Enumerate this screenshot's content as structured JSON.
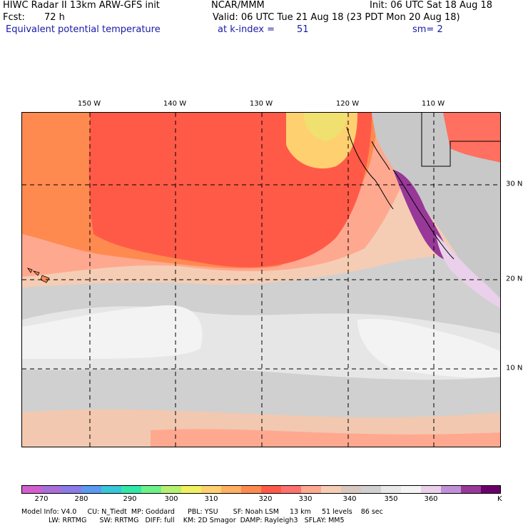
{
  "header": {
    "title": "HIWC Radar II 13km ARW-GFS init",
    "org": "NCAR/MMM",
    "init": "Init: 06 UTC Sat 18 Aug 18",
    "fcst_label": "Fcst:",
    "fcst_value": "72 h",
    "valid": "Valid: 06 UTC Tue 21 Aug 18 (23 PDT Mon 20 Aug 18)",
    "field": "Equivalent potential temperature",
    "level": "at k-index =",
    "level_value": "51",
    "smoothing": "sm= 2"
  },
  "map": {
    "longitude_labels": [
      "150 W",
      "140 W",
      "130 W",
      "120 W",
      "110 W"
    ],
    "latitude_labels": [
      "30 N",
      "20 N",
      "10 N"
    ],
    "gridlines": "dashed"
  },
  "colorbar": {
    "unit": "K",
    "tick_labels": [
      "270",
      "280",
      "290",
      "300",
      "310",
      "320",
      "330",
      "340",
      "350",
      "360"
    ],
    "colors": [
      "#d35fcf",
      "#a86fd8",
      "#8a7be6",
      "#5a9af0",
      "#38c6d8",
      "#30e8a8",
      "#6ef08a",
      "#b6f070",
      "#f0f060",
      "#ffd070",
      "#ffb060",
      "#ff8a50",
      "#ff5a48",
      "#ff7070",
      "#ffa890",
      "#f4cdb4",
      "#d8c8c0",
      "#d0d0d0",
      "#e8e8e8",
      "#f4f4f4",
      "#ead0ea",
      "#c090d8",
      "#983898",
      "#6a006a"
    ]
  },
  "footer": {
    "line1": "Model Info: V4.0     CU: N_Tiedt  MP: Goddard      PBL: YSU       SF: Noah LSM     13 km     51 levels    86 sec",
    "line2": "LW: RRTMG      SW: RRTMG   DIFF: full    KM: 2D Smagor  DAMP: Rayleigh3   SFLAY: MM5"
  }
}
